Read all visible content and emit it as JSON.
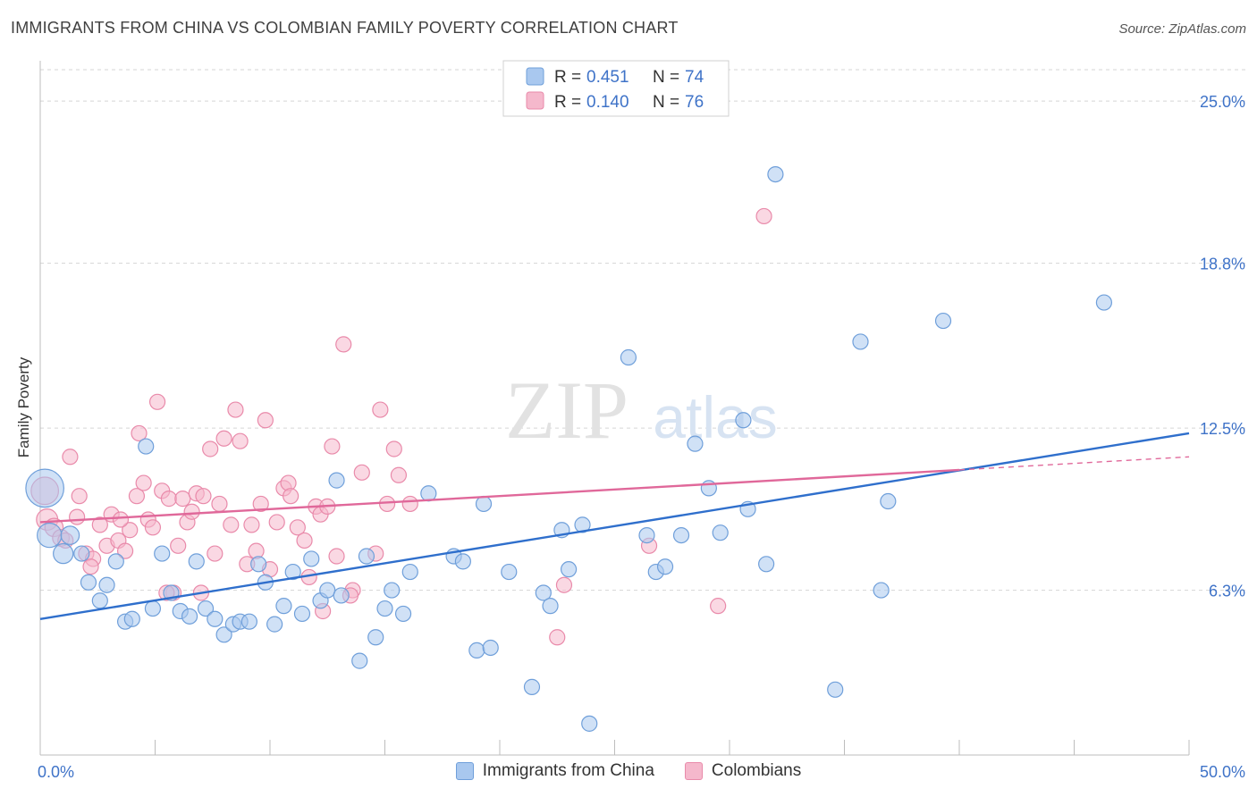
{
  "header": {
    "title": "IMMIGRANTS FROM CHINA VS COLOMBIAN FAMILY POVERTY CORRELATION CHART",
    "source": "Source: ZipAtlas.com"
  },
  "watermark": {
    "zip": "ZIP",
    "atlas": "atlas"
  },
  "colors": {
    "china_fill": "#a9c8ef",
    "china_stroke": "#6f9fda",
    "china_line": "#2f6fcc",
    "colombia_fill": "#f5b8cc",
    "colombia_stroke": "#e98aaa",
    "colombia_line": "#e0689a",
    "axis_label": "#3f73c8",
    "grid": "#d5d5d5"
  },
  "stats_legend": [
    {
      "series": "Immigrants from China",
      "r_label": "R =",
      "r_value": "0.451",
      "n_label": "N =",
      "n_value": "74"
    },
    {
      "series": "Colombians",
      "r_label": "R =",
      "r_value": "0.140",
      "n_label": "N =",
      "n_value": "76"
    }
  ],
  "bottom_legend": [
    {
      "label": "Immigrants from China"
    },
    {
      "label": "Colombians"
    }
  ],
  "chart_data": {
    "type": "scatter",
    "title": "IMMIGRANTS FROM CHINA VS COLOMBIAN FAMILY POVERTY CORRELATION CHART",
    "xlabel": "",
    "ylabel": "Family Poverty",
    "xlim": [
      0,
      50
    ],
    "ylim": [
      0,
      26.2
    ],
    "x_tick_labels": [
      "0.0%",
      "50.0%"
    ],
    "y_ticks": [
      6.3,
      12.5,
      18.8,
      25.0
    ],
    "y_tick_labels": [
      "6.3%",
      "12.5%",
      "18.8%",
      "25.0%"
    ],
    "grid": true,
    "legend_position": "top-center",
    "series": [
      {
        "name": "Immigrants from China",
        "r": 0.451,
        "n": 74,
        "trend": {
          "x0": 0,
          "y0": 5.2,
          "x1": 50,
          "y1": 12.3
        },
        "points": [
          [
            0.2,
            10.2,
            2.5
          ],
          [
            0.4,
            8.4,
            1.6
          ],
          [
            1.0,
            7.7,
            1.3
          ],
          [
            1.3,
            8.4,
            1.2
          ],
          [
            1.8,
            7.7,
            1.0
          ],
          [
            2.1,
            6.6,
            1.0
          ],
          [
            2.6,
            5.9,
            1.0
          ],
          [
            2.9,
            6.5,
            1.0
          ],
          [
            3.3,
            7.4,
            1.0
          ],
          [
            3.7,
            5.1,
            1.0
          ],
          [
            4.0,
            5.2,
            1.0
          ],
          [
            4.6,
            11.8,
            1.0
          ],
          [
            4.9,
            5.6,
            1.0
          ],
          [
            5.3,
            7.7,
            1.0
          ],
          [
            5.7,
            6.2,
            1.0
          ],
          [
            6.1,
            5.5,
            1.0
          ],
          [
            6.5,
            5.3,
            1.0
          ],
          [
            6.8,
            7.4,
            1.0
          ],
          [
            7.2,
            5.6,
            1.0
          ],
          [
            7.6,
            5.2,
            1.0
          ],
          [
            8.0,
            4.6,
            1.0
          ],
          [
            8.4,
            5.0,
            1.0
          ],
          [
            8.7,
            5.1,
            1.0
          ],
          [
            9.1,
            5.1,
            1.0
          ],
          [
            9.5,
            7.3,
            1.0
          ],
          [
            9.8,
            6.6,
            1.0
          ],
          [
            10.2,
            5.0,
            1.0
          ],
          [
            10.6,
            5.7,
            1.0
          ],
          [
            11.0,
            7.0,
            1.0
          ],
          [
            11.4,
            5.4,
            1.0
          ],
          [
            11.8,
            7.5,
            1.0
          ],
          [
            12.2,
            5.9,
            1.0
          ],
          [
            12.5,
            6.3,
            1.0
          ],
          [
            13.1,
            6.1,
            1.0
          ],
          [
            12.9,
            10.5,
            1.0
          ],
          [
            13.9,
            3.6,
            1.0
          ],
          [
            14.2,
            7.6,
            1.0
          ],
          [
            14.6,
            4.5,
            1.0
          ],
          [
            15.0,
            5.6,
            1.0
          ],
          [
            15.3,
            6.3,
            1.0
          ],
          [
            15.8,
            5.4,
            1.0
          ],
          [
            16.1,
            7.0,
            1.0
          ],
          [
            16.9,
            10.0,
            1.0
          ],
          [
            18.0,
            7.6,
            1.0
          ],
          [
            18.4,
            7.4,
            1.0
          ],
          [
            19.0,
            4.0,
            1.0
          ],
          [
            19.3,
            9.6,
            1.0
          ],
          [
            19.6,
            4.1,
            1.0
          ],
          [
            20.4,
            7.0,
            1.0
          ],
          [
            21.4,
            2.6,
            1.0
          ],
          [
            21.9,
            6.2,
            1.0
          ],
          [
            22.2,
            5.7,
            1.0
          ],
          [
            22.7,
            8.6,
            1.0
          ],
          [
            23.0,
            7.1,
            1.0
          ],
          [
            23.6,
            8.8,
            1.0
          ],
          [
            23.9,
            1.2,
            1.0
          ],
          [
            25.6,
            15.2,
            1.0
          ],
          [
            26.4,
            8.4,
            1.0
          ],
          [
            26.8,
            7.0,
            1.0
          ],
          [
            27.2,
            7.2,
            1.0
          ],
          [
            27.9,
            8.4,
            1.0
          ],
          [
            28.5,
            11.9,
            1.0
          ],
          [
            29.1,
            10.2,
            1.0
          ],
          [
            29.6,
            8.5,
            1.0
          ],
          [
            30.6,
            12.8,
            1.0
          ],
          [
            30.8,
            9.4,
            1.0
          ],
          [
            31.6,
            7.3,
            1.0
          ],
          [
            32.0,
            22.2,
            1.0
          ],
          [
            34.6,
            2.5,
            1.0
          ],
          [
            35.7,
            15.8,
            1.0
          ],
          [
            36.6,
            6.3,
            1.0
          ],
          [
            36.9,
            9.7,
            1.0
          ],
          [
            39.3,
            16.6,
            1.0
          ],
          [
            46.3,
            17.3,
            1.0
          ]
        ]
      },
      {
        "name": "Colombians",
        "r": 0.14,
        "n": 76,
        "trend": {
          "x0": 0,
          "y0": 8.9,
          "x1": 40,
          "y1": 10.9
        },
        "trend_dashed": {
          "x0": 40,
          "y0": 10.9,
          "x1": 50,
          "y1": 11.4
        },
        "points": [
          [
            0.2,
            10.1,
            1.8
          ],
          [
            0.3,
            9.0,
            1.4
          ],
          [
            0.6,
            8.7,
            1.2
          ],
          [
            0.9,
            8.3,
            1.1
          ],
          [
            1.3,
            11.4,
            1.0
          ],
          [
            1.6,
            9.1,
            1.0
          ],
          [
            1.7,
            9.9,
            1.0
          ],
          [
            2.0,
            7.7,
            1.0
          ],
          [
            2.3,
            7.5,
            1.0
          ],
          [
            2.6,
            8.8,
            1.0
          ],
          [
            2.9,
            8.0,
            1.0
          ],
          [
            3.1,
            9.2,
            1.0
          ],
          [
            3.4,
            8.2,
            1.0
          ],
          [
            3.7,
            7.8,
            1.0
          ],
          [
            3.9,
            8.6,
            1.0
          ],
          [
            4.2,
            9.9,
            1.0
          ],
          [
            4.3,
            12.3,
            1.0
          ],
          [
            4.5,
            10.4,
            1.0
          ],
          [
            4.7,
            9.0,
            1.0
          ],
          [
            4.9,
            8.7,
            1.0
          ],
          [
            5.1,
            13.5,
            1.0
          ],
          [
            5.3,
            10.1,
            1.0
          ],
          [
            5.6,
            9.8,
            1.0
          ],
          [
            5.8,
            6.2,
            1.0
          ],
          [
            6.0,
            8.0,
            1.0
          ],
          [
            6.2,
            9.8,
            1.0
          ],
          [
            6.4,
            8.9,
            1.0
          ],
          [
            6.6,
            9.3,
            1.0
          ],
          [
            6.8,
            10.0,
            1.0
          ],
          [
            7.1,
            9.9,
            1.0
          ],
          [
            7.4,
            11.7,
            1.0
          ],
          [
            7.6,
            7.7,
            1.0
          ],
          [
            7.8,
            9.6,
            1.0
          ],
          [
            8.0,
            12.1,
            1.0
          ],
          [
            8.3,
            8.8,
            1.0
          ],
          [
            8.5,
            13.2,
            1.0
          ],
          [
            8.7,
            12.0,
            1.0
          ],
          [
            9.0,
            7.3,
            1.0
          ],
          [
            9.2,
            8.8,
            1.0
          ],
          [
            9.4,
            7.8,
            1.0
          ],
          [
            9.6,
            9.6,
            1.0
          ],
          [
            9.8,
            12.8,
            1.0
          ],
          [
            10.0,
            7.1,
            1.0
          ],
          [
            10.3,
            8.9,
            1.0
          ],
          [
            10.6,
            10.2,
            1.0
          ],
          [
            10.8,
            10.4,
            1.0
          ],
          [
            10.9,
            9.9,
            1.0
          ],
          [
            11.2,
            8.7,
            1.0
          ],
          [
            11.5,
            8.2,
            1.0
          ],
          [
            11.7,
            6.8,
            1.0
          ],
          [
            12.0,
            9.5,
            1.0
          ],
          [
            12.2,
            9.2,
            1.0
          ],
          [
            12.5,
            9.5,
            1.0
          ],
          [
            12.7,
            11.8,
            1.0
          ],
          [
            12.9,
            7.6,
            1.0
          ],
          [
            13.2,
            15.7,
            1.0
          ],
          [
            13.6,
            6.3,
            1.0
          ],
          [
            14.0,
            10.8,
            1.0
          ],
          [
            14.6,
            7.7,
            1.0
          ],
          [
            14.8,
            13.2,
            1.0
          ],
          [
            15.1,
            9.6,
            1.0
          ],
          [
            15.4,
            11.7,
            1.0
          ],
          [
            15.6,
            10.7,
            1.0
          ],
          [
            16.1,
            9.6,
            1.0
          ],
          [
            22.5,
            4.5,
            1.0
          ],
          [
            22.8,
            6.5,
            1.0
          ],
          [
            26.5,
            8.0,
            1.0
          ],
          [
            29.5,
            5.7,
            1.0
          ],
          [
            31.5,
            20.6,
            1.0
          ],
          [
            1.1,
            8.2,
            1.0
          ],
          [
            2.2,
            7.2,
            1.0
          ],
          [
            3.5,
            9.0,
            1.0
          ],
          [
            12.3,
            5.5,
            1.0
          ],
          [
            7.0,
            6.2,
            1.0
          ],
          [
            5.5,
            6.2,
            1.0
          ],
          [
            13.5,
            6.1,
            1.0
          ]
        ]
      }
    ]
  }
}
